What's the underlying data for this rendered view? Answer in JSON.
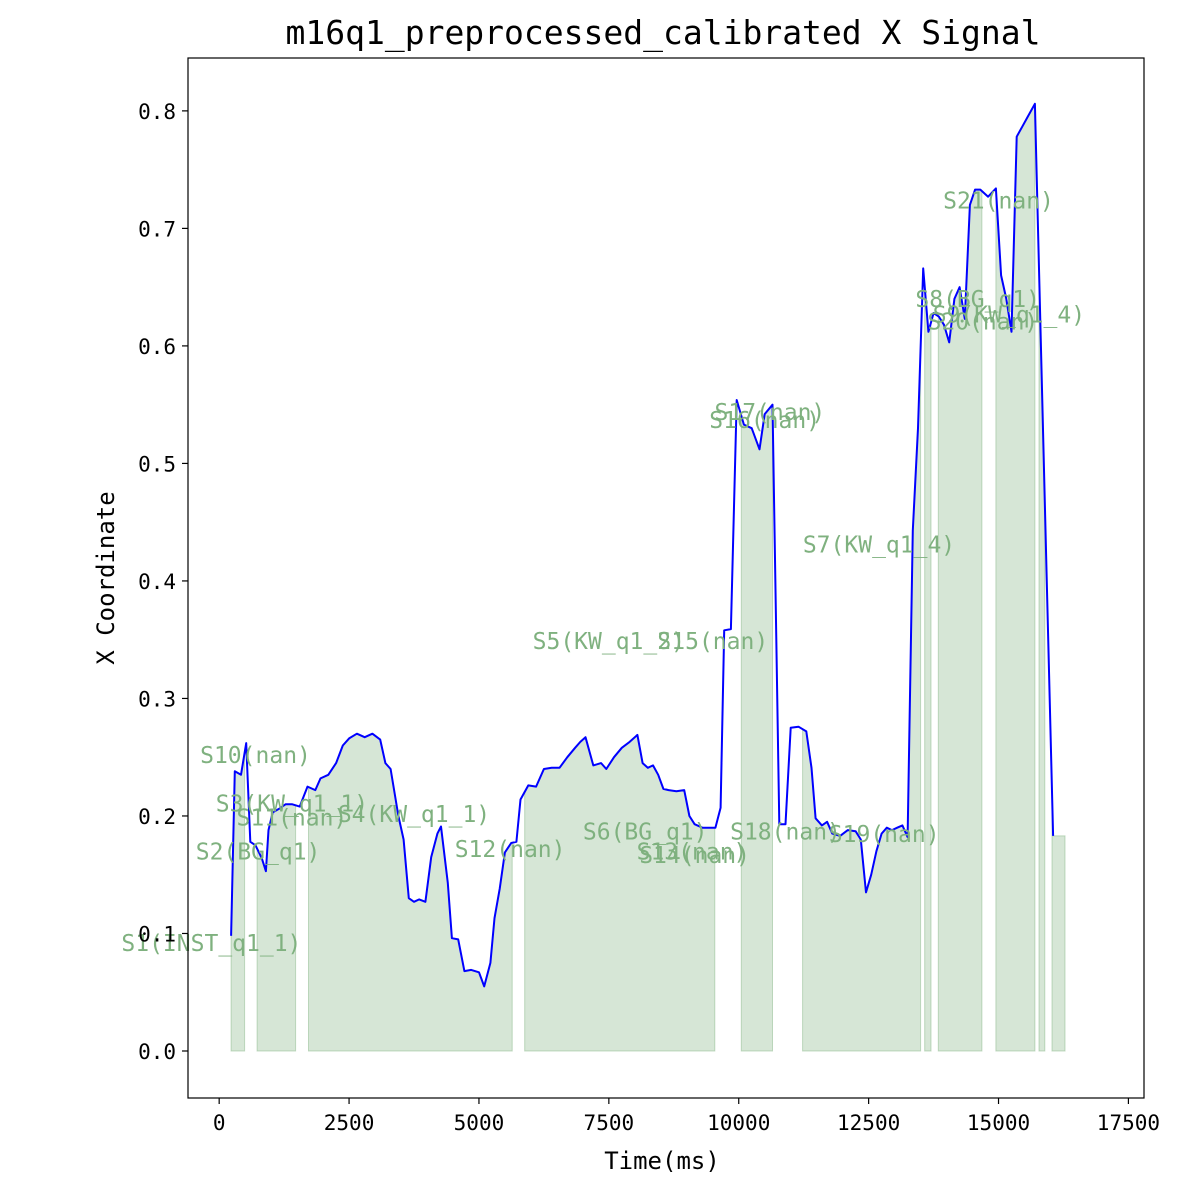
{
  "colors": {
    "line": "#0000ff",
    "fill": "#7fb17f",
    "label": "#7fb17f",
    "axes": "#000000"
  },
  "chart_data": {
    "type": "line",
    "title": "m16q1_preprocessed_calibrated X Signal",
    "xlabel": "Time(ms)",
    "ylabel": "X Coordinate",
    "xlim": [
      -600,
      17800
    ],
    "ylim": [
      -0.04,
      0.845
    ],
    "xticks": [
      0,
      2500,
      5000,
      7500,
      10000,
      12500,
      15000,
      17500
    ],
    "xtick_labels": [
      "0",
      "2500",
      "5000",
      "7500",
      "10000",
      "12500",
      "15000",
      "17500"
    ],
    "yticks": [
      0.0,
      0.1,
      0.2,
      0.3,
      0.4,
      0.5,
      0.6,
      0.7,
      0.8
    ],
    "ytick_labels": [
      "0.0",
      "0.1",
      "0.2",
      "0.3",
      "0.4",
      "0.5",
      "0.6",
      "0.7",
      "0.8"
    ],
    "grid": false,
    "series": [
      {
        "points": [
          [
            230,
            0.098
          ],
          [
            300,
            0.238
          ],
          [
            420,
            0.235
          ],
          [
            520,
            0.262
          ],
          [
            600,
            0.178
          ],
          [
            700,
            0.175
          ],
          [
            820,
            0.164
          ],
          [
            900,
            0.153
          ],
          [
            950,
            0.188
          ],
          [
            1030,
            0.203
          ],
          [
            1150,
            0.206
          ],
          [
            1280,
            0.21
          ],
          [
            1400,
            0.21
          ],
          [
            1550,
            0.208
          ],
          [
            1700,
            0.225
          ],
          [
            1850,
            0.222
          ],
          [
            1950,
            0.232
          ],
          [
            2100,
            0.235
          ],
          [
            2250,
            0.245
          ],
          [
            2380,
            0.26
          ],
          [
            2500,
            0.266
          ],
          [
            2650,
            0.27
          ],
          [
            2800,
            0.267
          ],
          [
            2950,
            0.27
          ],
          [
            3100,
            0.265
          ],
          [
            3200,
            0.245
          ],
          [
            3300,
            0.24
          ],
          [
            3450,
            0.2
          ],
          [
            3550,
            0.18
          ],
          [
            3650,
            0.13
          ],
          [
            3750,
            0.127
          ],
          [
            3850,
            0.129
          ],
          [
            3970,
            0.127
          ],
          [
            4080,
            0.165
          ],
          [
            4200,
            0.185
          ],
          [
            4270,
            0.191
          ],
          [
            4400,
            0.143
          ],
          [
            4480,
            0.096
          ],
          [
            4600,
            0.095
          ],
          [
            4720,
            0.068
          ],
          [
            4850,
            0.069
          ],
          [
            5000,
            0.067
          ],
          [
            5100,
            0.055
          ],
          [
            5220,
            0.075
          ],
          [
            5300,
            0.113
          ],
          [
            5400,
            0.138
          ],
          [
            5500,
            0.169
          ],
          [
            5620,
            0.177
          ],
          [
            5720,
            0.178
          ],
          [
            5800,
            0.214
          ],
          [
            5950,
            0.226
          ],
          [
            6100,
            0.225
          ],
          [
            6250,
            0.24
          ],
          [
            6400,
            0.241
          ],
          [
            6550,
            0.241
          ],
          [
            6700,
            0.25
          ],
          [
            6850,
            0.258
          ],
          [
            6950,
            0.263
          ],
          [
            7050,
            0.267
          ],
          [
            7200,
            0.243
          ],
          [
            7350,
            0.245
          ],
          [
            7450,
            0.24
          ],
          [
            7600,
            0.25
          ],
          [
            7750,
            0.258
          ],
          [
            7900,
            0.263
          ],
          [
            8050,
            0.269
          ],
          [
            8150,
            0.245
          ],
          [
            8250,
            0.241
          ],
          [
            8350,
            0.243
          ],
          [
            8450,
            0.235
          ],
          [
            8550,
            0.223
          ],
          [
            8650,
            0.222
          ],
          [
            8800,
            0.221
          ],
          [
            8950,
            0.222
          ],
          [
            9050,
            0.2
          ],
          [
            9150,
            0.193
          ],
          [
            9300,
            0.19
          ],
          [
            9450,
            0.19
          ],
          [
            9550,
            0.19
          ],
          [
            9650,
            0.207
          ],
          [
            9720,
            0.358
          ],
          [
            9850,
            0.359
          ],
          [
            9960,
            0.554
          ],
          [
            10100,
            0.533
          ],
          [
            10250,
            0.53
          ],
          [
            10400,
            0.512
          ],
          [
            10500,
            0.542
          ],
          [
            10650,
            0.55
          ],
          [
            10780,
            0.193
          ],
          [
            10900,
            0.193
          ],
          [
            11000,
            0.275
          ],
          [
            11150,
            0.276
          ],
          [
            11300,
            0.272
          ],
          [
            11400,
            0.241
          ],
          [
            11480,
            0.198
          ],
          [
            11600,
            0.192
          ],
          [
            11700,
            0.195
          ],
          [
            11800,
            0.185
          ],
          [
            11950,
            0.183
          ],
          [
            12100,
            0.188
          ],
          [
            12250,
            0.187
          ],
          [
            12350,
            0.18
          ],
          [
            12450,
            0.135
          ],
          [
            12550,
            0.15
          ],
          [
            12650,
            0.17
          ],
          [
            12750,
            0.185
          ],
          [
            12850,
            0.19
          ],
          [
            12950,
            0.188
          ],
          [
            13050,
            0.19
          ],
          [
            13150,
            0.192
          ],
          [
            13250,
            0.182
          ],
          [
            13350,
            0.443
          ],
          [
            13450,
            0.53
          ],
          [
            13550,
            0.666
          ],
          [
            13650,
            0.612
          ],
          [
            13750,
            0.628
          ],
          [
            13850,
            0.625
          ],
          [
            13950,
            0.618
          ],
          [
            14050,
            0.603
          ],
          [
            14150,
            0.64
          ],
          [
            14250,
            0.65
          ],
          [
            14350,
            0.623
          ],
          [
            14450,
            0.72
          ],
          [
            14550,
            0.733
          ],
          [
            14650,
            0.733
          ],
          [
            14800,
            0.727
          ],
          [
            14950,
            0.734
          ],
          [
            15050,
            0.66
          ],
          [
            15150,
            0.64
          ],
          [
            15250,
            0.612
          ],
          [
            15350,
            0.778
          ],
          [
            15450,
            0.786
          ],
          [
            15550,
            0.794
          ],
          [
            15700,
            0.806
          ],
          [
            16050,
            0.183
          ]
        ]
      }
    ],
    "segments": [
      {
        "label": "S1(INST_q1_1)",
        "x0": 230,
        "x1": 500
      },
      {
        "label": "S2(BG_q1)",
        "x0": 730,
        "x1": 1470
      },
      {
        "label": "S3(KW_q1_1)",
        "x0": 1500,
        "x1": 1550
      },
      {
        "label": "S4(KW_q1_1)",
        "x0": 1720,
        "x1": 5640
      },
      {
        "label": "S5(KW_q1_2)",
        "x0": 5880,
        "x1": 9540
      },
      {
        "label": "S6(BG_q1)",
        "x0": 9560,
        "x1": 9600
      },
      {
        "label": "S7(KW_q1_4)",
        "x0": 10050,
        "x1": 10640
      },
      {
        "label": "S8(BG_q1)",
        "x0": 13770,
        "x1": 13800
      },
      {
        "label": "S9(KW_q1_4)",
        "x0": 13800,
        "x1": 14680
      },
      {
        "label": "S10(nan)",
        "x0": 500,
        "x1": 730
      },
      {
        "label": "S11(nan)",
        "x0": 1470,
        "x1": 1500
      },
      {
        "label": "S12(nan)",
        "x0": 5640,
        "x1": 5880
      },
      {
        "label": "S13(nan)",
        "x0": 9540,
        "x1": 9560
      },
      {
        "label": "S14(nan)",
        "x0": 9600,
        "x1": 9620
      },
      {
        "label": "S15(nan)",
        "x0": 9620,
        "x1": 10050
      },
      {
        "label": "S16(nan)",
        "x0": 10640,
        "x1": 10660
      },
      {
        "label": "S17(nan)",
        "x0": 10660,
        "x1": 10680
      },
      {
        "label": "S18(nan)",
        "x0": 11180,
        "x1": 11230
      },
      {
        "label": "S19(nan)",
        "x0": 11230,
        "x1": 13500
      },
      {
        "label": "S20(nan)",
        "x0": 13500,
        "x1": 13770
      },
      {
        "label": "S21(nan)",
        "x0": 14950,
        "x1": 15700
      }
    ],
    "fill_intervals": [
      [
        230,
        490
      ],
      [
        730,
        1470
      ],
      [
        1720,
        5640
      ],
      [
        5880,
        9540
      ],
      [
        10050,
        10650
      ],
      [
        11230,
        13500
      ],
      [
        13580,
        13700
      ],
      [
        13840,
        14680
      ],
      [
        14950,
        15700
      ],
      [
        15780,
        15890
      ],
      [
        16030,
        16280
      ]
    ],
    "segment_label_anchors": [
      {
        "label": "S1(INST_q1_1)",
        "x": -150,
        "y": 0.085
      },
      {
        "label": "S2(BG_q1)",
        "x": 750,
        "y": 0.163
      },
      {
        "label": "S3(KW_q1_1)",
        "x": 1400,
        "y": 0.204
      },
      {
        "label": "S4(KW_q1_1)",
        "x": 3750,
        "y": 0.195
      },
      {
        "label": "S5(KW_q1_2)",
        "x": 7500,
        "y": 0.342
      },
      {
        "label": "S6(BG_q1)",
        "x": 8200,
        "y": 0.18
      },
      {
        "label": "S7(KW_q1_4)",
        "x": 12700,
        "y": 0.424
      },
      {
        "label": "S8(BG_q1)",
        "x": 14600,
        "y": 0.633
      },
      {
        "label": "S9(KW_q1_4)",
        "x": 15200,
        "y": 0.62
      },
      {
        "label": "S10(nan)",
        "x": 700,
        "y": 0.245
      },
      {
        "label": "S11(nan)",
        "x": 1400,
        "y": 0.192
      },
      {
        "label": "S12(nan)",
        "x": 5600,
        "y": 0.165
      },
      {
        "label": "S13(nan)",
        "x": 9100,
        "y": 0.163
      },
      {
        "label": "S14(nan)",
        "x": 9150,
        "y": 0.16
      },
      {
        "label": "S15(nan)",
        "x": 9500,
        "y": 0.342
      },
      {
        "label": "S16(nan)",
        "x": 10500,
        "y": 0.53
      },
      {
        "label": "S17(nan)",
        "x": 10600,
        "y": 0.537
      },
      {
        "label": "S18(nan)",
        "x": 10900,
        "y": 0.18
      },
      {
        "label": "S19(nan)",
        "x": 12800,
        "y": 0.178
      },
      {
        "label": "S20(nan)",
        "x": 14700,
        "y": 0.614
      },
      {
        "label": "S21(nan)",
        "x": 15000,
        "y": 0.717
      }
    ]
  }
}
